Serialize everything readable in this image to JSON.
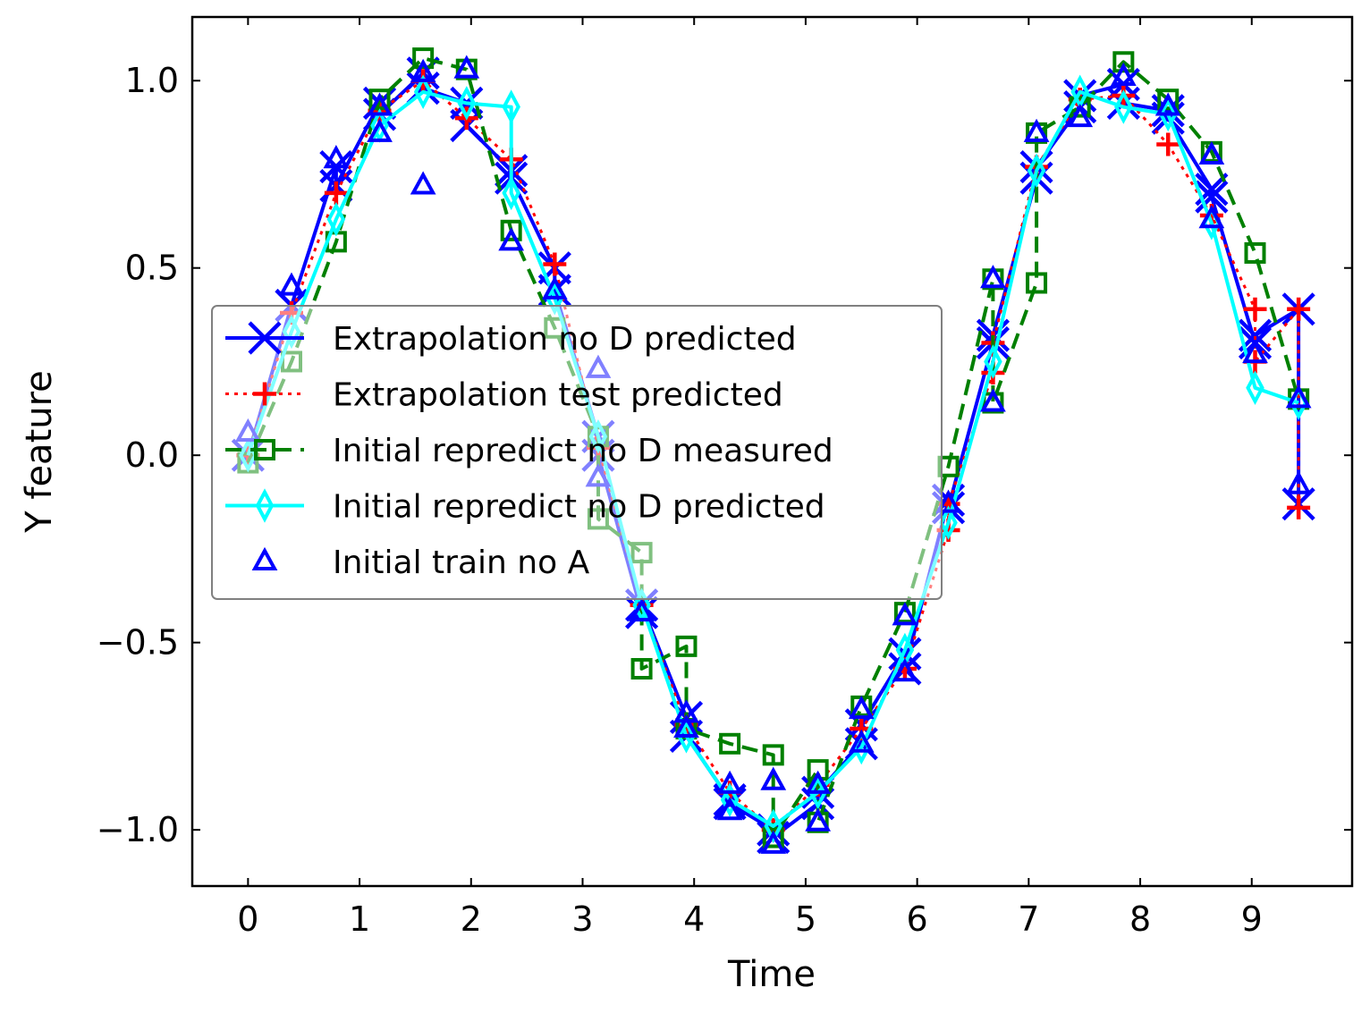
{
  "chart_data": {
    "type": "line",
    "title": "",
    "xlabel": "Time",
    "ylabel": "Y feature",
    "xlim": [
      -0.5,
      9.9
    ],
    "ylim": [
      -1.15,
      1.17
    ],
    "xticks": [
      0,
      1,
      2,
      3,
      4,
      5,
      6,
      7,
      8,
      9
    ],
    "xtick_labels": [
      "0",
      "1",
      "2",
      "3",
      "4",
      "5",
      "6",
      "7",
      "8",
      "9"
    ],
    "yticks": [
      1.0,
      0.5,
      0.0,
      -0.5,
      -1.0
    ],
    "ytick_labels": [
      "1.0",
      "0.5",
      "0.0",
      "−0.5",
      "−1.0"
    ],
    "grid": false,
    "legend_position": "center-left",
    "series": [
      {
        "name": "Extrapolation no D predicted",
        "color": "#0000ff",
        "linestyle": "solid",
        "marker": "x",
        "x": [
          0.0,
          0.39,
          0.39,
          0.79,
          0.79,
          1.18,
          1.18,
          1.57,
          1.57,
          1.96,
          1.96,
          2.36,
          2.36,
          2.75,
          2.75,
          3.14,
          3.14,
          3.53,
          3.53,
          3.93,
          3.93,
          4.32,
          4.32,
          4.71,
          4.71,
          5.11,
          5.11,
          5.5,
          5.5,
          5.89,
          5.89,
          6.28,
          6.28,
          6.68,
          6.68,
          7.07,
          7.07,
          7.46,
          7.46,
          7.85,
          7.85,
          8.25,
          8.25,
          8.64,
          8.64,
          9.03,
          9.03,
          9.42,
          9.42
        ],
        "y": [
          0.0,
          0.4,
          0.4,
          0.77,
          0.72,
          0.94,
          0.91,
          1.02,
          0.98,
          0.94,
          0.88,
          0.76,
          0.74,
          0.5,
          0.44,
          0.05,
          0.0,
          -0.42,
          -0.4,
          -0.7,
          -0.75,
          -0.92,
          -0.93,
          -1.0,
          -1.02,
          -0.93,
          -0.9,
          -0.77,
          -0.72,
          -0.53,
          -0.57,
          -0.12,
          -0.14,
          0.3,
          0.32,
          0.74,
          0.77,
          0.93,
          0.96,
          0.99,
          0.94,
          0.92,
          0.9,
          0.71,
          0.69,
          0.3,
          0.32,
          0.39,
          -0.13
        ]
      },
      {
        "name": "Extrapolation test predicted",
        "color": "#ff0000",
        "linestyle": "dotted",
        "marker": "+",
        "x": [
          0.0,
          0.39,
          0.79,
          1.18,
          1.57,
          1.96,
          2.36,
          2.75,
          3.14,
          3.53,
          3.93,
          4.32,
          4.71,
          5.11,
          5.5,
          5.89,
          6.28,
          6.28,
          6.68,
          6.68,
          7.07,
          7.46,
          7.85,
          8.25,
          8.64,
          9.03,
          9.03,
          9.42,
          9.42
        ],
        "y": [
          0.0,
          0.38,
          0.7,
          0.92,
          1.0,
          0.9,
          0.79,
          0.51,
          0.02,
          -0.4,
          -0.72,
          -0.9,
          -1.0,
          -0.88,
          -0.73,
          -0.57,
          -0.2,
          -0.13,
          0.22,
          0.3,
          0.77,
          0.95,
          0.96,
          0.83,
          0.64,
          0.39,
          0.25,
          0.39,
          -0.14
        ]
      },
      {
        "name": "Initial repredict no D measured",
        "color": "#008000",
        "linestyle": "dashed",
        "marker": "s",
        "x": [
          0.0,
          0.39,
          0.79,
          1.18,
          1.57,
          1.96,
          2.36,
          2.75,
          3.14,
          3.14,
          3.53,
          3.53,
          3.93,
          3.93,
          4.32,
          4.71,
          4.71,
          5.11,
          5.11,
          5.5,
          5.89,
          6.28,
          6.68,
          6.68,
          7.07,
          7.07,
          7.46,
          7.85,
          8.25,
          8.64,
          9.03,
          9.42
        ],
        "y": [
          -0.02,
          0.25,
          0.57,
          0.95,
          1.06,
          1.03,
          0.6,
          0.34,
          0.05,
          -0.17,
          -0.26,
          -0.57,
          -0.51,
          -0.73,
          -0.77,
          -0.8,
          -1.02,
          -0.84,
          -0.98,
          -0.67,
          -0.42,
          -0.03,
          0.47,
          0.14,
          0.46,
          0.86,
          0.93,
          1.05,
          0.95,
          0.81,
          0.54,
          0.15
        ]
      },
      {
        "name": "Initial repredict no D predicted",
        "color": "#00ffff",
        "linestyle": "solid",
        "marker": "d",
        "x": [
          0.0,
          0.39,
          0.79,
          1.18,
          1.57,
          1.96,
          2.36,
          2.36,
          2.75,
          3.14,
          3.53,
          3.93,
          4.32,
          4.71,
          5.11,
          5.5,
          5.89,
          6.28,
          6.68,
          7.07,
          7.46,
          7.85,
          8.25,
          8.64,
          9.03,
          9.42,
          9.42
        ],
        "y": [
          0.0,
          0.33,
          0.63,
          0.88,
          0.97,
          0.94,
          0.93,
          0.7,
          0.42,
          0.05,
          -0.4,
          -0.75,
          -0.92,
          -0.99,
          -0.9,
          -0.78,
          -0.52,
          -0.18,
          0.25,
          0.76,
          0.97,
          0.93,
          0.91,
          0.62,
          0.18,
          0.14,
          0.14
        ]
      },
      {
        "name": "Initial train no A",
        "color": "#0000ff",
        "linestyle": "none",
        "marker": "^",
        "x": [
          0.0,
          0.39,
          0.79,
          1.18,
          1.18,
          1.57,
          1.57,
          1.96,
          2.36,
          2.75,
          3.14,
          3.14,
          3.53,
          3.93,
          3.93,
          4.32,
          4.32,
          4.71,
          4.71,
          5.11,
          5.11,
          5.5,
          5.5,
          5.89,
          5.89,
          6.28,
          6.68,
          6.68,
          7.07,
          7.46,
          7.85,
          8.25,
          8.64,
          8.64,
          9.03,
          9.42,
          9.42
        ],
        "y": [
          0.06,
          0.45,
          0.79,
          0.93,
          0.86,
          1.02,
          0.72,
          1.03,
          0.57,
          0.44,
          0.23,
          -0.06,
          -0.42,
          -0.69,
          -0.73,
          -0.88,
          -0.95,
          -0.87,
          -1.04,
          -0.88,
          -0.98,
          -0.68,
          -0.77,
          -0.43,
          -0.58,
          -0.13,
          0.47,
          0.14,
          0.86,
          0.9,
          1.01,
          0.93,
          0.8,
          0.63,
          0.27,
          0.15,
          -0.08
        ]
      }
    ]
  }
}
